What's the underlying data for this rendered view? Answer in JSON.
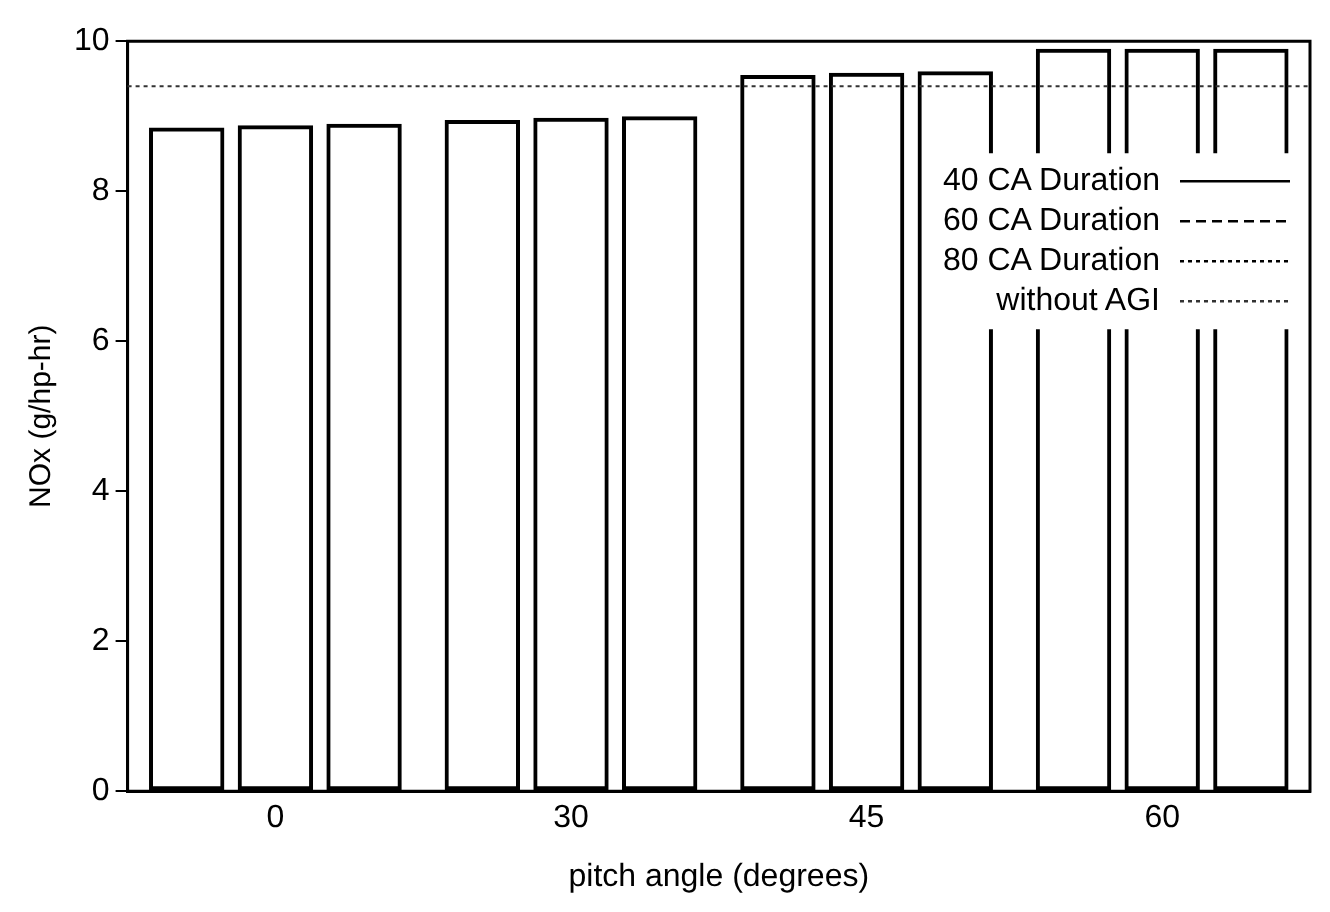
{
  "chart_data": {
    "type": "bar",
    "xlabel": "pitch angle (degrees)",
    "ylabel": "NOx (g/hp-hr)",
    "categories": [
      "0",
      "30",
      "45",
      "60"
    ],
    "series": [
      {
        "name": "40 CA Duration",
        "color": "#000000",
        "line_style": "solid",
        "values": [
          8.85,
          8.95,
          9.55,
          9.9
        ]
      },
      {
        "name": "60 CA Duration",
        "color": "#000000",
        "line_style": "dashed",
        "values": [
          8.88,
          8.98,
          9.58,
          9.9
        ]
      },
      {
        "name": "80 CA Duration",
        "color": "#000000",
        "line_style": "dotted",
        "values": [
          8.9,
          9.0,
          9.6,
          9.9
        ]
      }
    ],
    "ref_lines": [
      {
        "axis": "y",
        "value": 9.4,
        "label": "without AGI",
        "color": "#333333",
        "line_style": "dotted"
      }
    ],
    "ylim": [
      0,
      10
    ],
    "yticks": [
      0,
      2,
      4,
      6,
      8,
      10
    ],
    "grid": false,
    "legend": "top right"
  }
}
